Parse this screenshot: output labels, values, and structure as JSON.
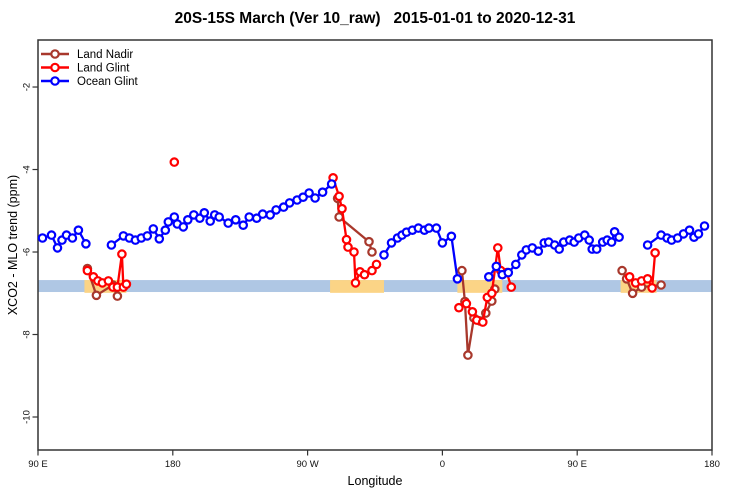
{
  "chart_data": {
    "type": "line",
    "title": "20S-15S March (Ver 10_raw)   2015-01-01 to 2020-12-31",
    "xlabel": "Longitude",
    "ylabel": "XCO2 - MLO trend (ppm)",
    "axis_note": "x axis is longitude wrapping eastward: 90E to 180 to 90W to 0 to 90E to 180; stored x values are degrees along this wrapped axis (90..540)",
    "xlim": [
      90,
      540
    ],
    "ylim": [
      -10.8,
      -0.86
    ],
    "x_ticks": [
      {
        "x": 90,
        "label": "90 E"
      },
      {
        "x": 180,
        "label": "180"
      },
      {
        "x": 270,
        "label": "90 W"
      },
      {
        "x": 360,
        "label": "0"
      },
      {
        "x": 450,
        "label": "90 E"
      },
      {
        "x": 540,
        "label": "180"
      }
    ],
    "y_ticks": [
      {
        "v": -2,
        "label": "-2"
      },
      {
        "v": -4,
        "label": "-4"
      },
      {
        "v": -6,
        "label": "-6"
      },
      {
        "v": -8,
        "label": "-8"
      },
      {
        "v": -10,
        "label": "-10"
      }
    ],
    "grid": false,
    "legend_position": "top-left",
    "bands": {
      "blue_band": {
        "color": "#AFC7E4",
        "y_from": -6.68,
        "y_to": -6.97,
        "x_from": 90,
        "x_to": 540
      },
      "yellow_segments": {
        "color": "#FBD486",
        "y_from": -6.68,
        "y_to": -6.99,
        "ranges": [
          [
            121,
            149
          ],
          [
            285,
            321
          ],
          [
            370,
            400
          ],
          [
            479,
            503
          ]
        ]
      }
    },
    "series": [
      {
        "name": "Land Nadir",
        "color": "#A8382C",
        "gap": 30,
        "points": [
          [
            123,
            -6.4
          ],
          [
            129,
            -7.05
          ],
          [
            140,
            -6.8
          ],
          [
            143,
            -7.07
          ],
          [
            290,
            -4.7
          ],
          [
            291,
            -5.15
          ],
          [
            311,
            -5.75
          ],
          [
            313,
            -6.0
          ],
          [
            373,
            -6.45
          ],
          [
            375,
            -7.2
          ],
          [
            377,
            -8.5
          ],
          [
            381,
            -7.6
          ],
          [
            385,
            -7.67
          ],
          [
            389,
            -7.48
          ],
          [
            393,
            -7.19
          ],
          [
            395,
            -6.9
          ],
          [
            480,
            -6.45
          ],
          [
            483,
            -6.65
          ],
          [
            487,
            -7.0
          ],
          [
            493,
            -6.85
          ],
          [
            506,
            -6.8
          ]
        ]
      },
      {
        "name": "Land Glint",
        "color": "#FF0000",
        "gap": 30,
        "points": [
          [
            123,
            -6.45
          ],
          [
            127,
            -6.6
          ],
          [
            130,
            -6.7
          ],
          [
            133,
            -6.75
          ],
          [
            137,
            -6.7
          ],
          [
            140,
            -6.85
          ],
          [
            143,
            -6.85
          ],
          [
            146,
            -6.05
          ],
          [
            147,
            -6.85
          ],
          [
            149,
            -6.78
          ],
          [
            181,
            -3.82
          ],
          [
            287,
            -4.2
          ],
          [
            291,
            -4.65
          ],
          [
            293,
            -4.95
          ],
          [
            296,
            -5.7
          ],
          [
            297,
            -5.88
          ],
          [
            301,
            -6.0
          ],
          [
            302,
            -6.75
          ],
          [
            305,
            -6.48
          ],
          [
            308,
            -6.55
          ],
          [
            313,
            -6.45
          ],
          [
            316,
            -6.3
          ],
          [
            371,
            -7.35
          ],
          [
            376,
            -7.25
          ],
          [
            380,
            -7.45
          ],
          [
            383,
            -7.65
          ],
          [
            387,
            -7.7
          ],
          [
            390,
            -7.1
          ],
          [
            393,
            -7.0
          ],
          [
            397,
            -5.9
          ],
          [
            399,
            -6.45
          ],
          [
            403,
            -6.5
          ],
          [
            406,
            -6.85
          ],
          [
            485,
            -6.6
          ],
          [
            489,
            -6.75
          ],
          [
            493,
            -6.7
          ],
          [
            497,
            -6.65
          ],
          [
            500,
            -6.87
          ],
          [
            502,
            -6.02
          ]
        ]
      },
      {
        "name": "Ocean Glint",
        "color": "#0000FF",
        "gap": 13,
        "points": [
          [
            93,
            -5.66
          ],
          [
            99,
            -5.59
          ],
          [
            103,
            -5.9
          ],
          [
            106,
            -5.71
          ],
          [
            109,
            -5.59
          ],
          [
            113,
            -5.66
          ],
          [
            117,
            -5.47
          ],
          [
            122,
            -5.8
          ],
          [
            139,
            -5.83
          ],
          [
            147,
            -5.61
          ],
          [
            151,
            -5.66
          ],
          [
            155,
            -5.71
          ],
          [
            159,
            -5.66
          ],
          [
            163,
            -5.61
          ],
          [
            167,
            -5.44
          ],
          [
            171,
            -5.68
          ],
          [
            175,
            -5.47
          ],
          [
            177,
            -5.27
          ],
          [
            181,
            -5.15
          ],
          [
            183,
            -5.32
          ],
          [
            187,
            -5.39
          ],
          [
            190,
            -5.22
          ],
          [
            194,
            -5.1
          ],
          [
            198,
            -5.18
          ],
          [
            201,
            -5.05
          ],
          [
            205,
            -5.25
          ],
          [
            208,
            -5.1
          ],
          [
            211,
            -5.15
          ],
          [
            217,
            -5.3
          ],
          [
            222,
            -5.22
          ],
          [
            227,
            -5.35
          ],
          [
            231,
            -5.15
          ],
          [
            236,
            -5.18
          ],
          [
            240,
            -5.08
          ],
          [
            245,
            -5.1
          ],
          [
            249,
            -4.98
          ],
          [
            254,
            -4.91
          ],
          [
            258,
            -4.81
          ],
          [
            263,
            -4.74
          ],
          [
            267,
            -4.67
          ],
          [
            271,
            -4.57
          ],
          [
            275,
            -4.69
          ],
          [
            280,
            -4.55
          ],
          [
            286,
            -4.35
          ],
          [
            321,
            -6.07
          ],
          [
            326,
            -5.78
          ],
          [
            330,
            -5.66
          ],
          [
            333,
            -5.59
          ],
          [
            336,
            -5.52
          ],
          [
            340,
            -5.47
          ],
          [
            344,
            -5.42
          ],
          [
            348,
            -5.47
          ],
          [
            351,
            -5.42
          ],
          [
            356,
            -5.42
          ],
          [
            360,
            -5.78
          ],
          [
            366,
            -5.62
          ],
          [
            370,
            -6.65
          ],
          [
            391,
            -6.6
          ],
          [
            396,
            -6.35
          ],
          [
            400,
            -6.55
          ],
          [
            404,
            -6.5
          ],
          [
            409,
            -6.3
          ],
          [
            413,
            -6.07
          ],
          [
            416,
            -5.95
          ],
          [
            420,
            -5.9
          ],
          [
            424,
            -5.98
          ],
          [
            428,
            -5.78
          ],
          [
            431,
            -5.76
          ],
          [
            435,
            -5.83
          ],
          [
            438,
            -5.93
          ],
          [
            441,
            -5.76
          ],
          [
            445,
            -5.71
          ],
          [
            448,
            -5.76
          ],
          [
            451,
            -5.66
          ],
          [
            455,
            -5.59
          ],
          [
            458,
            -5.71
          ],
          [
            460,
            -5.93
          ],
          [
            463,
            -5.93
          ],
          [
            467,
            -5.76
          ],
          [
            470,
            -5.71
          ],
          [
            473,
            -5.76
          ],
          [
            475,
            -5.51
          ],
          [
            478,
            -5.64
          ],
          [
            497,
            -5.83
          ],
          [
            506,
            -5.59
          ],
          [
            510,
            -5.66
          ],
          [
            513,
            -5.71
          ],
          [
            517,
            -5.66
          ],
          [
            521,
            -5.56
          ],
          [
            525,
            -5.47
          ],
          [
            528,
            -5.64
          ],
          [
            531,
            -5.56
          ],
          [
            535,
            -5.37
          ]
        ]
      }
    ]
  }
}
